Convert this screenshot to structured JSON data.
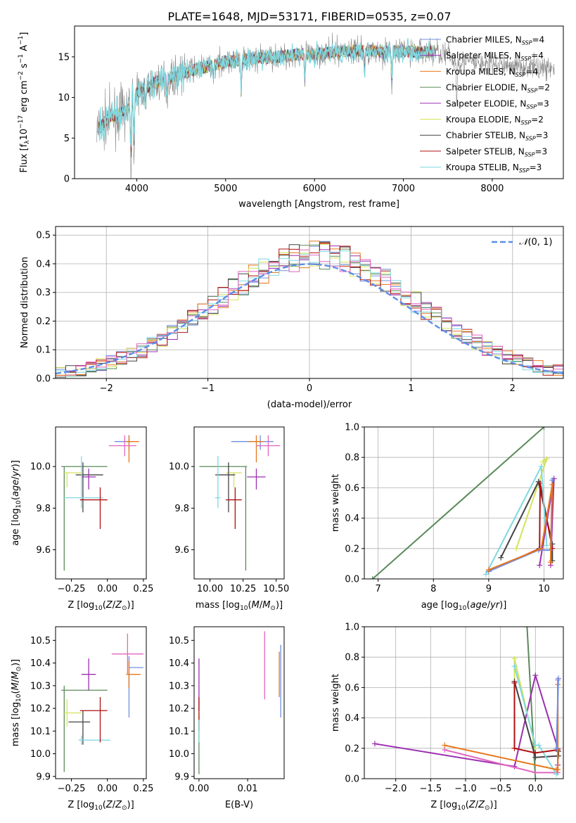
{
  "figure": {
    "title": "PLATE=1648, MJD=53171, FIBERID=0535, z=0.07"
  },
  "series_colors": {
    "Chabrier MILES": "#6f8fe0",
    "Salpeter MILES": "#9b2fb0",
    "Kroupa MILES": "#e8761a",
    "Chabrier ELODIE": "#5a8a5a",
    "Salpeter ELODIE": "#9b2fb0",
    "Kroupa ELODIE": "#d4e35a",
    "Chabrier STELIB": "#444444",
    "Salpeter STELIB": "#b01010",
    "Kroupa STELIB": "#7fd8e0",
    "Pink": "#e066c0"
  },
  "chart_data": [
    {
      "id": "spectrum",
      "type": "line",
      "xlabel": "wavelength [Angstrom, rest frame]",
      "ylabel": "Flux [f_λ 10^-17 erg cm^-2 s^-1 A^-1]",
      "xlim": [
        3300,
        8800
      ],
      "ylim": [
        0,
        18.8
      ],
      "xticks": [
        4000,
        5000,
        6000,
        7000,
        8000
      ],
      "yticks": [
        0,
        5,
        10,
        15
      ],
      "grid": false,
      "legend_position": "right",
      "legend": [
        {
          "base": "Chabrier MILES, N",
          "sub": "SSP",
          "tail": "=4",
          "color": "#6f8fe0"
        },
        {
          "base": "Salpeter MILES, N",
          "sub": "SSP",
          "tail": "=4",
          "color": "#9b2fb0"
        },
        {
          "base": "Kroupa MILES, N",
          "sub": "SSP",
          "tail": "=4",
          "color": "#e8761a"
        },
        {
          "base": "Chabrier ELODIE, N",
          "sub": "SSP",
          "tail": "=2",
          "color": "#5a8a5a"
        },
        {
          "base": "Salpeter ELODIE, N",
          "sub": "SSP",
          "tail": "=3",
          "color": "#9b2fb0"
        },
        {
          "base": "Kroupa ELODIE, N",
          "sub": "SSP",
          "tail": "=2",
          "color": "#d4e35a"
        },
        {
          "base": "Chabrier STELIB, N",
          "sub": "SSP",
          "tail": "=3",
          "color": "#444444"
        },
        {
          "base": "Salpeter STELIB, N",
          "sub": "SSP",
          "tail": "=3",
          "color": "#b01010"
        },
        {
          "base": "Kroupa STELIB, N",
          "sub": "SSP",
          "tail": "=3",
          "color": "#7fd8e0"
        }
      ],
      "continuum": [
        [
          3550,
          6.0
        ],
        [
          3700,
          7.5
        ],
        [
          3900,
          8.5
        ],
        [
          4000,
          10.5
        ],
        [
          4200,
          11.8
        ],
        [
          4400,
          12.5
        ],
        [
          4600,
          13.3
        ],
        [
          4800,
          13.8
        ],
        [
          5000,
          14.4
        ],
        [
          5200,
          14.6
        ],
        [
          5400,
          14.9
        ],
        [
          5600,
          15.0
        ],
        [
          5800,
          15.3
        ],
        [
          6000,
          15.3
        ],
        [
          6200,
          15.6
        ],
        [
          6400,
          15.7
        ],
        [
          6600,
          15.8
        ],
        [
          6800,
          15.6
        ],
        [
          7000,
          15.7
        ],
        [
          7200,
          15.6
        ],
        [
          7400,
          15.7
        ],
        [
          7600,
          14.5
        ],
        [
          7800,
          14.3
        ],
        [
          8000,
          14.0
        ],
        [
          8200,
          13.9
        ],
        [
          8400,
          13.8
        ],
        [
          8700,
          13.6
        ]
      ],
      "absorption": [
        [
          3934,
          0.5
        ],
        [
          3969,
          3.5
        ],
        [
          4101,
          8.2
        ],
        [
          4340,
          9.5
        ],
        [
          4861,
          12.0
        ],
        [
          5175,
          9.8
        ],
        [
          5890,
          11.5
        ],
        [
          6563,
          13.0
        ],
        [
          6870,
          11.0
        ],
        [
          7600,
          9.0
        ]
      ]
    },
    {
      "id": "residuals",
      "type": "step",
      "xlabel": "(data-model)/error",
      "ylabel": "Normed distribution",
      "xlim": [
        -2.5,
        2.5
      ],
      "ylim": [
        0,
        0.53
      ],
      "xticks": [
        -2,
        -1,
        0,
        1,
        2
      ],
      "yticks": [
        0.0,
        0.1,
        0.2,
        0.3,
        0.4,
        0.5
      ],
      "grid": true,
      "legend": {
        "label": "N(0,1)",
        "color": "#5b8ee6",
        "position": "upper right"
      },
      "bin_width": 0.1,
      "bins_start": -2.5
    },
    {
      "id": "age_vs_Z",
      "type": "errorbar",
      "xlabel": "Z [log10(Z/Z⊙)]",
      "ylabel": "age [log10(age/yr)]",
      "xlim": [
        -0.36,
        0.27
      ],
      "ylim": [
        9.46,
        10.19
      ],
      "xticks": [
        -0.25,
        0.0,
        0.25
      ],
      "yticks": [
        9.6,
        9.8,
        10.0
      ],
      "points": [
        {
          "x": -0.3,
          "y": 10.0,
          "xerr": [
            0.02,
            0.3
          ],
          "yerr": [
            0.5,
            0.0
          ],
          "color": "#5a8a5a"
        },
        {
          "x": -0.28,
          "y": 9.97,
          "xerr": [
            0.02,
            0.1
          ],
          "yerr": [
            0.07,
            0.0
          ],
          "color": "#d4e35a"
        },
        {
          "x": -0.17,
          "y": 9.96,
          "xerr": [
            0.05,
            0.14
          ],
          "yerr": [
            0.18,
            0.06
          ],
          "color": "#444444"
        },
        {
          "x": -0.13,
          "y": 9.95,
          "xerr": [
            0.05,
            0.05
          ],
          "yerr": [
            0.06,
            0.04
          ],
          "color": "#9b2fb0"
        },
        {
          "x": -0.18,
          "y": 9.85,
          "xerr": [
            0.12,
            0.15
          ],
          "yerr": [
            0.05,
            0.2
          ],
          "color": "#7fd8e0"
        },
        {
          "x": -0.05,
          "y": 9.84,
          "xerr": [
            0.14,
            0.05
          ],
          "yerr": [
            0.14,
            0.06
          ],
          "color": "#b01010"
        },
        {
          "x": 0.15,
          "y": 10.12,
          "xerr": [
            0.1,
            0.03
          ],
          "yerr": [
            0.04,
            0.03
          ],
          "color": "#6f8fe0"
        },
        {
          "x": 0.15,
          "y": 10.12,
          "xerr": [
            0.02,
            0.07
          ],
          "yerr": [
            0.1,
            0.03
          ],
          "color": "#e8761a"
        },
        {
          "x": 0.12,
          "y": 10.1,
          "xerr": [
            0.11,
            0.08
          ],
          "yerr": [
            0.05,
            0.05
          ],
          "color": "#e066c0"
        }
      ]
    },
    {
      "id": "age_vs_mass",
      "type": "errorbar",
      "xlabel": "mass [log10(M/M⊙)]",
      "ylabel": "",
      "xlim": [
        9.88,
        10.56
      ],
      "ylim": [
        9.46,
        10.19
      ],
      "xticks": [
        10.0,
        10.25,
        10.5
      ],
      "yticks": [
        9.6,
        9.8,
        10.0
      ],
      "points": [
        {
          "x": 10.27,
          "y": 10.0,
          "xerr": [
            0.35,
            0.01
          ],
          "yerr": [
            0.5,
            0.0
          ],
          "color": "#5a8a5a"
        },
        {
          "x": 10.18,
          "y": 9.97,
          "xerr": [
            0.06,
            0.06
          ],
          "yerr": [
            0.07,
            0.0
          ],
          "color": "#d4e35a"
        },
        {
          "x": 10.14,
          "y": 9.96,
          "xerr": [
            0.1,
            0.05
          ],
          "yerr": [
            0.18,
            0.06
          ],
          "color": "#444444"
        },
        {
          "x": 10.35,
          "y": 9.95,
          "xerr": [
            0.07,
            0.07
          ],
          "yerr": [
            0.06,
            0.04
          ],
          "color": "#9b2fb0"
        },
        {
          "x": 10.06,
          "y": 9.85,
          "xerr": [
            0.02,
            0.02
          ],
          "yerr": [
            0.05,
            0.2
          ],
          "color": "#7fd8e0"
        },
        {
          "x": 10.19,
          "y": 9.84,
          "xerr": [
            0.07,
            0.05
          ],
          "yerr": [
            0.14,
            0.06
          ],
          "color": "#b01010"
        },
        {
          "x": 10.38,
          "y": 10.12,
          "xerr": [
            0.22,
            0.1
          ],
          "yerr": [
            0.04,
            0.03
          ],
          "color": "#6f8fe0"
        },
        {
          "x": 10.35,
          "y": 10.12,
          "xerr": [
            0.06,
            0.06
          ],
          "yerr": [
            0.1,
            0.03
          ],
          "color": "#e8761a"
        },
        {
          "x": 10.44,
          "y": 10.1,
          "xerr": [
            0.09,
            0.09
          ],
          "yerr": [
            0.05,
            0.05
          ],
          "color": "#e066c0"
        }
      ]
    },
    {
      "id": "weight_vs_age",
      "type": "line",
      "xlabel": "age [log10(age/yr)]",
      "ylabel": "mass weight",
      "xlim": [
        6.75,
        10.35
      ],
      "ylim": [
        0,
        1.0
      ],
      "xticks": [
        7,
        8,
        9,
        10
      ],
      "yticks": [
        0.0,
        0.2,
        0.4,
        0.6,
        0.8,
        1.0
      ],
      "grid": true,
      "series": [
        {
          "color": "#5a8a5a",
          "x": [
            6.9,
            10.0
          ],
          "y": [
            0.0,
            1.0
          ]
        },
        {
          "color": "#d4e35a",
          "x": [
            9.5,
            10.05,
            9.98
          ],
          "y": [
            0.2,
            0.79,
            0.77
          ]
        },
        {
          "color": "#444444",
          "x": [
            9.22,
            9.9,
            10.15,
            10.15
          ],
          "y": [
            0.14,
            0.64,
            0.23,
            0.12
          ]
        },
        {
          "color": "#b01010",
          "x": [
            9.0,
            9.92,
            9.93,
            10.15
          ],
          "y": [
            0.05,
            0.2,
            0.63,
            0.2
          ]
        },
        {
          "color": "#7fd8e0",
          "x": [
            8.95,
            9.95,
            10.05
          ],
          "y": [
            0.03,
            0.74,
            0.22
          ]
        },
        {
          "color": "#9b2fb0",
          "x": [
            9.92,
            10.18,
            10.12
          ],
          "y": [
            0.09,
            0.66,
            0.09
          ]
        },
        {
          "color": "#6f8fe0",
          "x": [
            9.0,
            9.9,
            10.12,
            10.15
          ],
          "y": [
            0.05,
            0.19,
            0.19,
            0.65
          ]
        },
        {
          "color": "#e8761a",
          "x": [
            9.0,
            9.95,
            10.15,
            10.12
          ],
          "y": [
            0.06,
            0.2,
            0.62,
            0.11
          ]
        }
      ]
    },
    {
      "id": "mass_vs_Z",
      "type": "errorbar",
      "xlabel": "Z [log10(Z/Z⊙)]",
      "ylabel": "mass [log10(M/M⊙)]",
      "xlim": [
        -0.36,
        0.27
      ],
      "ylim": [
        9.89,
        10.56
      ],
      "xticks": [
        -0.25,
        0.0,
        0.25
      ],
      "yticks": [
        9.9,
        10.0,
        10.1,
        10.2,
        10.3,
        10.4,
        10.5
      ],
      "points": [
        {
          "x": -0.3,
          "y": 10.28,
          "xerr": [
            0.02,
            0.3
          ],
          "yerr": [
            0.36,
            0.02
          ],
          "color": "#5a8a5a"
        },
        {
          "x": -0.28,
          "y": 10.18,
          "xerr": [
            0.02,
            0.1
          ],
          "yerr": [
            0.06,
            0.06
          ],
          "color": "#d4e35a"
        },
        {
          "x": -0.17,
          "y": 10.14,
          "xerr": [
            0.1,
            0.05
          ],
          "yerr": [
            0.1,
            0.05
          ],
          "color": "#444444"
        },
        {
          "x": -0.13,
          "y": 10.35,
          "xerr": [
            0.05,
            0.05
          ],
          "yerr": [
            0.07,
            0.07
          ],
          "color": "#9b2fb0"
        },
        {
          "x": -0.18,
          "y": 10.06,
          "xerr": [
            0.02,
            0.2
          ],
          "yerr": [
            0.02,
            0.02
          ],
          "color": "#7fd8e0"
        },
        {
          "x": -0.05,
          "y": 10.19,
          "xerr": [
            0.14,
            0.05
          ],
          "yerr": [
            0.14,
            0.06
          ],
          "color": "#b01010"
        },
        {
          "x": 0.15,
          "y": 10.38,
          "xerr": [
            0.0,
            0.1
          ],
          "yerr": [
            0.22,
            0.05
          ],
          "color": "#6f8fe0"
        },
        {
          "x": 0.15,
          "y": 10.35,
          "xerr": [
            0.02,
            0.08
          ],
          "yerr": [
            0.06,
            0.06
          ],
          "color": "#e8761a"
        },
        {
          "x": 0.14,
          "y": 10.44,
          "xerr": [
            0.11,
            0.11
          ],
          "yerr": [
            0.09,
            0.09
          ],
          "color": "#e066c0"
        }
      ]
    },
    {
      "id": "mass_vs_ebv",
      "type": "errorbar",
      "xlabel": "E(B-V)",
      "ylabel": "",
      "xlim": [
        -0.001,
        0.0175
      ],
      "ylim": [
        9.89,
        10.56
      ],
      "xticks": [
        0.0,
        0.01
      ],
      "yticks": [
        9.9,
        10.0,
        10.1,
        10.2,
        10.3,
        10.4,
        10.5
      ],
      "points": [
        {
          "x": 0.0,
          "y": 10.03,
          "xerr": [
            0,
            0
          ],
          "yerr": [
            0.12,
            0.14
          ],
          "color": "#5a8a5a"
        },
        {
          "x": 0.0,
          "y": 10.1,
          "xerr": [
            0,
            0
          ],
          "yerr": [
            0.05,
            0.1
          ],
          "color": "#d4e35a"
        },
        {
          "x": 0.0,
          "y": 10.31,
          "xerr": [
            0,
            0
          ],
          "yerr": [
            0.12,
            0.11
          ],
          "color": "#9b2fb0"
        },
        {
          "x": 0.0,
          "y": 10.15,
          "xerr": [
            0,
            0
          ],
          "yerr": [
            0.05,
            0.1
          ],
          "color": "#b01010"
        },
        {
          "x": 0.0,
          "y": 10.1,
          "xerr": [
            0,
            0
          ],
          "yerr": [
            0.05,
            0.05
          ],
          "color": "#7fd8e0"
        },
        {
          "x": 0.0135,
          "y": 10.39,
          "xerr": [
            0,
            0
          ],
          "yerr": [
            0.15,
            0.15
          ],
          "color": "#e066c0"
        },
        {
          "x": 0.0168,
          "y": 10.32,
          "xerr": [
            0,
            0
          ],
          "yerr": [
            0.16,
            0.16
          ],
          "color": "#6f8fe0"
        },
        {
          "x": 0.0165,
          "y": 10.35,
          "xerr": [
            0,
            0
          ],
          "yerr": [
            0.1,
            0.1
          ],
          "color": "#e8761a"
        }
      ]
    },
    {
      "id": "weight_vs_Z",
      "type": "line",
      "xlabel": "Z [log10(Z/Z⊙)]",
      "ylabel": "mass weight",
      "xlim": [
        -2.45,
        0.4
      ],
      "ylim": [
        0,
        1.0
      ],
      "xticks": [
        -2.0,
        -1.5,
        -1.0,
        -0.5,
        0.0
      ],
      "yticks": [
        0.0,
        0.2,
        0.4,
        0.6,
        0.8,
        1.0
      ],
      "grid": true,
      "series": [
        {
          "color": "#5a8a5a",
          "x": [
            -0.12,
            0.0
          ],
          "y": [
            1.0,
            0.0
          ]
        },
        {
          "color": "#9b2fb0",
          "x": [
            -2.3,
            -0.3,
            0.0,
            0.32,
            0.32
          ],
          "y": [
            0.23,
            0.08,
            0.68,
            0.2,
            0.09
          ]
        },
        {
          "color": "#d4e35a",
          "x": [
            -0.3,
            -0.3,
            0.0
          ],
          "y": [
            0.2,
            0.79,
            0.2
          ]
        },
        {
          "color": "#e066c0",
          "x": [
            -1.3,
            0.0,
            0.32,
            0.32
          ],
          "y": [
            0.19,
            0.04,
            0.04,
            0.65
          ]
        },
        {
          "color": "#444444",
          "x": [
            -0.3,
            0.0,
            0.33,
            0.33
          ],
          "y": [
            0.64,
            0.14,
            0.15,
            0.18
          ]
        },
        {
          "color": "#7fd8e0",
          "x": [
            -0.3,
            0.0,
            0.05,
            0.3
          ],
          "y": [
            0.74,
            0.22,
            0.22,
            0.03
          ]
        },
        {
          "color": "#b01010",
          "x": [
            -0.3,
            -0.3,
            0.0,
            0.32
          ],
          "y": [
            0.63,
            0.2,
            0.17,
            0.19
          ]
        },
        {
          "color": "#e8761a",
          "x": [
            -1.3,
            0.3,
            0.32,
            0.32
          ],
          "y": [
            0.22,
            0.06,
            0.06,
            0.62
          ]
        },
        {
          "color": "#6f8fe0",
          "x": [
            0.3,
            0.33
          ],
          "y": [
            0.2,
            0.66
          ]
        }
      ]
    }
  ]
}
